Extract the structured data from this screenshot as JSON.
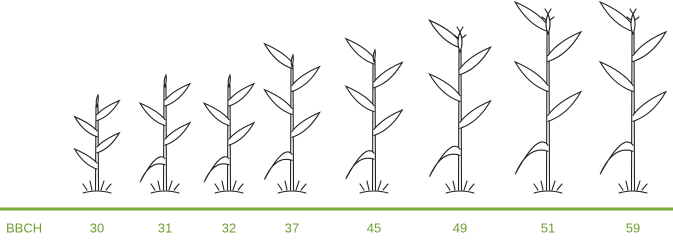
{
  "axis_label": "BBCH",
  "stages": [
    30,
    31,
    32,
    37,
    45,
    49,
    51,
    59
  ]
}
